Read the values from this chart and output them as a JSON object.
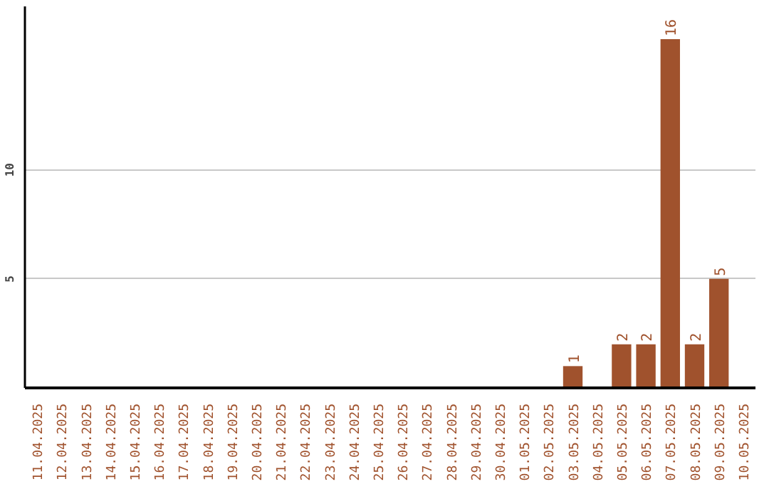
{
  "chart_data": {
    "type": "bar",
    "categories": [
      "11.04.2025",
      "12.04.2025",
      "13.04.2025",
      "14.04.2025",
      "15.04.2025",
      "16.04.2025",
      "17.04.2025",
      "18.04.2025",
      "19.04.2025",
      "20.04.2025",
      "21.04.2025",
      "22.04.2025",
      "23.04.2025",
      "24.04.2025",
      "25.04.2025",
      "26.04.2025",
      "27.04.2025",
      "28.04.2025",
      "29.04.2025",
      "30.04.2025",
      "01.05.2025",
      "02.05.2025",
      "03.05.2025",
      "04.05.2025",
      "05.05.2025",
      "06.05.2025",
      "07.05.2025",
      "08.05.2025",
      "09.05.2025",
      "10.05.2025"
    ],
    "values": [
      0,
      0,
      0,
      0,
      0,
      0,
      0,
      0,
      0,
      0,
      0,
      0,
      0,
      0,
      0,
      0,
      0,
      0,
      0,
      0,
      0,
      0,
      1,
      0,
      2,
      2,
      16,
      2,
      5,
      0
    ],
    "value_labels": [
      null,
      null,
      null,
      null,
      null,
      null,
      null,
      null,
      null,
      null,
      null,
      null,
      null,
      null,
      null,
      null,
      null,
      null,
      null,
      null,
      null,
      null,
      "1",
      null,
      "2",
      "2",
      "16",
      "2",
      "5",
      null
    ],
    "color": "#a0522d",
    "ylim": [
      0,
      17.5
    ],
    "yticks": [
      5,
      10
    ],
    "grid": "y"
  }
}
